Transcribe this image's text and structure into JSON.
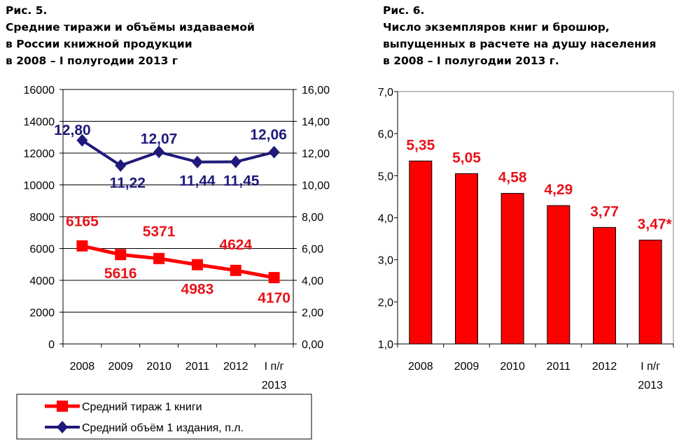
{
  "figure5": {
    "number": "Рис. 5.",
    "title_lines": [
      "Средние тиражи и объёмы издаваемой",
      "в России книжной продукции",
      "в 2008 – I полугодии 2013 г"
    ]
  },
  "figure6": {
    "number": "Рис. 6.",
    "title_lines": [
      "Число экземпляров книг и брошюр,",
      "выпущенных в расчете на душу населения",
      "в 2008 – I полугодии 2013 г."
    ]
  },
  "chart_data": [
    {
      "type": "line",
      "categories": [
        "2008",
        "2009",
        "2010",
        "2011",
        "2012",
        "I п/г 2013"
      ],
      "category_lines": [
        [
          "2008"
        ],
        [
          "2009"
        ],
        [
          "2010"
        ],
        [
          "2011"
        ],
        [
          "2012"
        ],
        [
          "I п/г",
          "2013"
        ]
      ],
      "ylim": [
        0,
        16000
      ],
      "y_ticks": [
        "0",
        "2000",
        "4000",
        "6000",
        "8000",
        "10000",
        "12000",
        "14000",
        "16000"
      ],
      "y2lim": [
        0,
        16
      ],
      "y2_ticks": [
        "0,00",
        "2,00",
        "4,00",
        "6,00",
        "8,00",
        "10,00",
        "12,00",
        "14,00",
        "16,00"
      ],
      "grid": true,
      "legend_position": "bottom",
      "series": [
        {
          "name": "Средний тираж 1 книги",
          "axis": "left",
          "color": "#ff0000",
          "marker": "square",
          "values": [
            6165,
            5616,
            5371,
            4983,
            4624,
            4170
          ],
          "labels": [
            "6165",
            "5616",
            "5371",
            "4983",
            "4624",
            "4170"
          ]
        },
        {
          "name": "Средний объём 1 издания, п.л.",
          "axis": "right",
          "color": "#1f1a7a",
          "marker": "diamond",
          "values": [
            12.8,
            11.22,
            12.07,
            11.44,
            11.45,
            12.06
          ],
          "labels": [
            "12,80",
            "11,22",
            "12,07",
            "11,44",
            "11,45",
            "12,06"
          ]
        }
      ]
    },
    {
      "type": "bar",
      "categories": [
        "2008",
        "2009",
        "2010",
        "2011",
        "2012",
        "I п/г 2013"
      ],
      "category_lines": [
        [
          "2008"
        ],
        [
          "2009"
        ],
        [
          "2010"
        ],
        [
          "2011"
        ],
        [
          "2012"
        ],
        [
          "I п/г",
          "2013"
        ]
      ],
      "values": [
        5.35,
        5.05,
        4.58,
        4.29,
        3.77,
        3.47
      ],
      "labels": [
        "5,35",
        "5,05",
        "4,58",
        "4,29",
        "3,77",
        "3,47*"
      ],
      "ylim": [
        1,
        7
      ],
      "y_ticks": [
        "1,0",
        "2,0",
        "3,0",
        "4,0",
        "5,0",
        "6,0",
        "7,0"
      ],
      "grid": false,
      "bar_color": "#ff0000",
      "label_color": "#e8141b"
    }
  ]
}
